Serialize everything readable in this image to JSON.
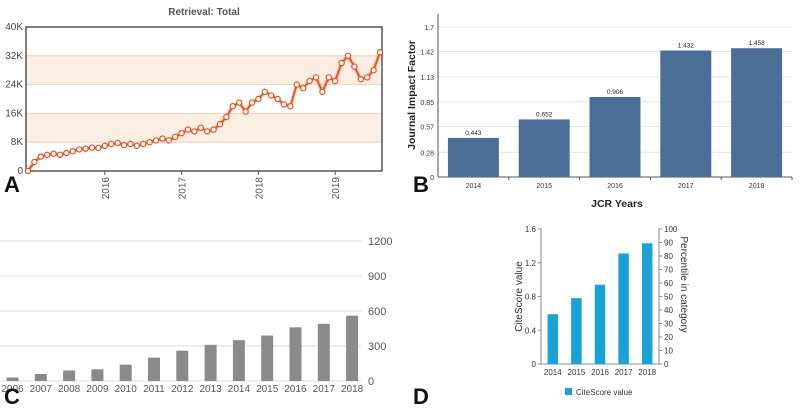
{
  "panels": {
    "a": "A",
    "b": "B",
    "c": "C",
    "d": "D"
  },
  "chart_data": [
    {
      "panel": "A",
      "type": "line",
      "title": "Retrieval: Total",
      "xlabel": "",
      "ylabel": "",
      "ylim": [
        0,
        40000
      ],
      "yticks": [
        "0",
        "8K",
        "16K",
        "24K",
        "32K",
        "40K"
      ],
      "yticks_values": [
        0,
        8000,
        16000,
        24000,
        32000,
        40000
      ],
      "xticks": [
        "2016",
        "2017",
        "2018",
        "2019"
      ],
      "grid": true,
      "colors": {
        "line": "#e8511e",
        "band": "#fdeee4",
        "marker_fill": "#ffffff"
      },
      "x_range": [
        "2015-01",
        "2019-09"
      ],
      "series": [
        {
          "values": [
            0,
            2500,
            4000,
            4500,
            4800,
            4500,
            5000,
            5500,
            6000,
            6200,
            6500,
            6400,
            7000,
            7500,
            7800,
            7200,
            7500,
            7000,
            7500,
            8000,
            8500,
            9000,
            8500,
            9500,
            10500,
            11500,
            11000,
            12000,
            11000,
            11500,
            13000,
            15000,
            18000,
            19000,
            16500,
            19000,
            20000,
            22000,
            21000,
            20000,
            18500,
            18000,
            24000,
            23000,
            25000,
            26000,
            22000,
            26000,
            25000,
            30000,
            32000,
            29000,
            25500,
            26000,
            28000,
            33000
          ]
        }
      ]
    },
    {
      "panel": "B",
      "type": "bar",
      "title": "",
      "xlabel": "JCR Years",
      "ylabel": "Journal Impact Factor",
      "ylim": [
        0,
        1.8
      ],
      "yticks": [
        "0",
        "0.28",
        "0.57",
        "0.85",
        "1.13",
        "1.42",
        "1.7"
      ],
      "yticks_values": [
        0,
        0.28,
        0.57,
        0.85,
        1.13,
        1.42,
        1.7
      ],
      "categories": [
        "2014",
        "2015",
        "2016",
        "2017",
        "2018"
      ],
      "values": [
        0.443,
        0.652,
        0.906,
        1.432,
        1.458
      ],
      "value_labels": [
        "0.443",
        "0.652",
        "0.906",
        "1.432",
        "1.458"
      ],
      "grid": true,
      "colors": {
        "bar": "#4a6e98"
      }
    },
    {
      "panel": "C",
      "type": "bar",
      "title": "",
      "xlabel": "",
      "ylabel": "",
      "ylim": [
        0,
        1200
      ],
      "yticks": [
        "0",
        "300",
        "600",
        "900",
        "1200"
      ],
      "yticks_values": [
        0,
        300,
        600,
        900,
        1200
      ],
      "categories": [
        "2006",
        "2007",
        "2008",
        "2009",
        "2010",
        "2011",
        "2012",
        "2013",
        "2014",
        "2015",
        "2016",
        "2017",
        "2018"
      ],
      "values": [
        30,
        60,
        90,
        100,
        140,
        200,
        260,
        310,
        350,
        390,
        460,
        490,
        560
      ],
      "grid": true,
      "colors": {
        "bar": "#8a8a8a"
      }
    },
    {
      "panel": "D",
      "type": "bar",
      "title": "",
      "xlabel": "",
      "ylabel": "CiteScore value",
      "y2label": "Percentile in category",
      "ylim": [
        0,
        1.6
      ],
      "yticks": [
        "0",
        "0.4",
        "0.8",
        "1.2",
        "1.6"
      ],
      "yticks_values": [
        0,
        0.4,
        0.8,
        1.2,
        1.6
      ],
      "y2lim": [
        0,
        100
      ],
      "y2ticks": [
        "0",
        "10",
        "20",
        "30",
        "40",
        "50",
        "60",
        "70",
        "80",
        "90",
        "100"
      ],
      "y2ticks_values": [
        0,
        10,
        20,
        30,
        40,
        50,
        60,
        70,
        80,
        90,
        100
      ],
      "categories": [
        "2014",
        "2015",
        "2016",
        "2017",
        "2018"
      ],
      "series": [
        {
          "name": "CiteScore value",
          "values": [
            0.59,
            0.78,
            0.94,
            1.31,
            1.43
          ]
        }
      ],
      "legend": "bottom",
      "grid": false,
      "colors": {
        "bar": "#17a3d5"
      }
    }
  ]
}
